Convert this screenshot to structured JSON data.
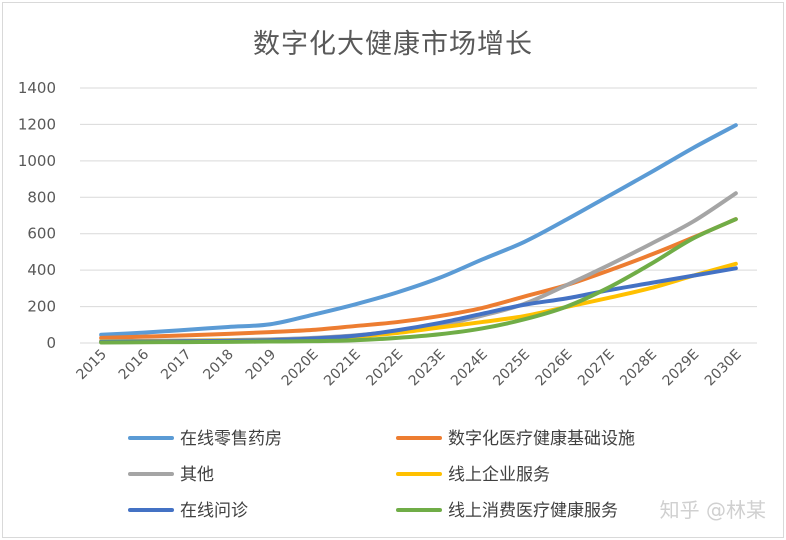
{
  "chart_data": {
    "type": "line",
    "title": "数字化大健康市场增长",
    "categories": [
      "2015",
      "2016",
      "2017",
      "2018",
      "2019",
      "2020E",
      "2021E",
      "2022E",
      "2023E",
      "2024E",
      "2025E",
      "2026E",
      "2027E",
      "2028E",
      "2029E",
      "2030E"
    ],
    "ylim": [
      0,
      1400
    ],
    "yticks": [
      0,
      200,
      400,
      600,
      800,
      1000,
      1200,
      1400
    ],
    "grid": true,
    "legend_position": "bottom",
    "series": [
      {
        "name": "在线零售药房",
        "color": "#5B9BD5",
        "values": [
          45,
          57,
          72,
          88,
          103,
          155,
          212,
          278,
          358,
          458,
          555,
          678,
          808,
          938,
          1072,
          1196
        ]
      },
      {
        "name": "数字化医疗健康基础设施",
        "color": "#ED7D31",
        "values": [
          28,
          35,
          42,
          50,
          60,
          72,
          93,
          115,
          148,
          192,
          255,
          318,
          398,
          485,
          580,
          680
        ]
      },
      {
        "name": "其他",
        "color": "#A5A5A5",
        "values": [
          10,
          12,
          14,
          16,
          20,
          28,
          42,
          65,
          98,
          150,
          215,
          318,
          428,
          545,
          668,
          822
        ]
      },
      {
        "name": "线上企业服务",
        "color": "#FFC000",
        "values": [
          8,
          10,
          12,
          14,
          16,
          22,
          35,
          55,
          85,
          115,
          148,
          198,
          248,
          302,
          370,
          435
        ]
      },
      {
        "name": "在线问诊",
        "color": "#4472C4",
        "values": [
          6,
          8,
          10,
          12,
          16,
          25,
          40,
          70,
          110,
          160,
          210,
          245,
          290,
          330,
          370,
          410
        ]
      },
      {
        "name": "线上消费医疗健康服务",
        "color": "#70AD47",
        "values": [
          3,
          4,
          5,
          6,
          8,
          10,
          15,
          28,
          48,
          80,
          130,
          200,
          305,
          435,
          575,
          680
        ]
      }
    ]
  },
  "watermark": "知乎 @林某"
}
